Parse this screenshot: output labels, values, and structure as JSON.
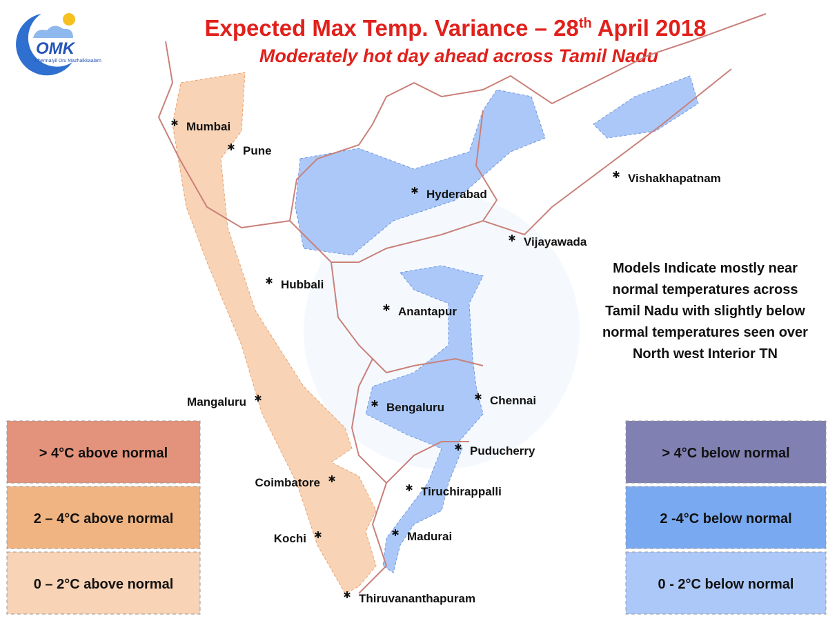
{
  "logo": {
    "text": "OMK",
    "tagline": "Chennaiyil Oru Mazhaikkaalam"
  },
  "title": {
    "before": "Expected Max Temp. Variance – 28",
    "suffix": "th",
    "after": " April 2018"
  },
  "subtitle": "Moderately hot day ahead across Tamil Nadu",
  "cities": [
    "Mumbai",
    "Pune",
    "Hyderabad",
    "Vishakhapatnam",
    "Vijayawada",
    "Hubbali",
    "Anantapur",
    "Mangaluru",
    "Bengaluru",
    "Chennai",
    "Puducherry",
    "Coimbatore",
    "Tiruchirappalli",
    "Kochi",
    "Madurai",
    "Thiruvananthapuram"
  ],
  "note": [
    "Models Indicate mostly near",
    "normal temperatures across",
    "Tamil Nadu with slightly below",
    "normal temperatures seen over",
    "North west Interior TN"
  ],
  "legend_above": [
    {
      "label": "> 4°C above normal",
      "color": "#e3937b"
    },
    {
      "label": "2 – 4°C above normal",
      "color": "#f0b482"
    },
    {
      "label": "0 – 2°C above normal",
      "color": "#f8d3b5"
    }
  ],
  "legend_below": [
    {
      "label": "> 4°C  below normal",
      "color": "#8080b2"
    },
    {
      "label": "2 -4°C below normal",
      "color": "#79a9f1"
    },
    {
      "label": "0 - 2°C below normal",
      "color": "#abc8f8"
    }
  ]
}
